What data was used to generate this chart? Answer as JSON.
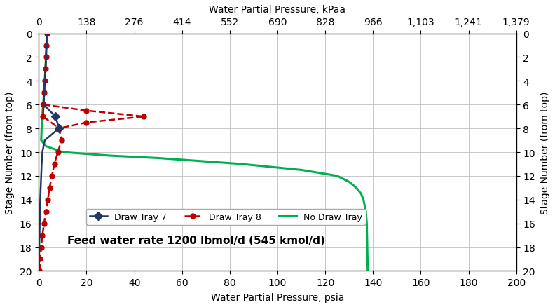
{
  "title_annotation": "Feed water rate 1200 lbmol/d (545 kmol/d)",
  "xlabel_bottom": "Water Partial Pressure, psia",
  "xlabel_top": "Water Partial Pressure, kPaa",
  "ylabel_left": "Stage Number (from top)",
  "ylabel_right": "Stage Number (from top)",
  "xlim_psia": [
    0,
    200
  ],
  "ylim": [
    0,
    20
  ],
  "xticks_bottom": [
    0,
    20,
    40,
    60,
    80,
    100,
    120,
    140,
    160,
    180,
    200
  ],
  "xticks_top_labels": [
    "0",
    "138",
    "276",
    "414",
    "552",
    "690",
    "828",
    "966",
    "1,103",
    "1,241",
    "1,379"
  ],
  "xticks_top_values": [
    0,
    20,
    40,
    60,
    80,
    100,
    120,
    140,
    160,
    180,
    200
  ],
  "yticks": [
    0,
    2,
    4,
    6,
    8,
    10,
    12,
    14,
    16,
    18,
    20
  ],
  "draw_tray7": {
    "stages": [
      0,
      1,
      2,
      3,
      4,
      5,
      6,
      7,
      8,
      9,
      10,
      11,
      12,
      13,
      14,
      15,
      16,
      17,
      18,
      19,
      20
    ],
    "pressure": [
      3.5,
      3.2,
      3.0,
      2.8,
      2.5,
      2.3,
      2.0,
      7.0,
      8.5,
      2.5,
      1.5,
      1.2,
      1.0,
      0.8,
      0.6,
      0.5,
      0.4,
      0.3,
      0.2,
      0.15,
      0.1
    ],
    "marker_stages": [
      7,
      8
    ],
    "marker_pressures": [
      7.0,
      8.5
    ],
    "color": "#1F3864",
    "linewidth": 1.8,
    "marker": "D",
    "markersize": 6,
    "label": "Draw Tray 7"
  },
  "draw_tray8": {
    "stages": [
      0,
      1,
      2,
      3,
      4,
      5,
      6,
      7,
      8,
      9,
      10,
      11,
      12,
      13,
      14,
      15,
      16,
      17,
      18,
      19,
      20
    ],
    "pressure": [
      3.5,
      3.2,
      3.0,
      2.8,
      2.5,
      2.3,
      2.0,
      1.8,
      8.5,
      9.5,
      8.0,
      6.5,
      5.5,
      4.5,
      3.8,
      3.0,
      2.2,
      1.5,
      1.0,
      0.6,
      0.3
    ],
    "peak_stage": 7,
    "peak_pressure": 44.0,
    "loop_stages": [
      6,
      7,
      7,
      8
    ],
    "loop_pressure": [
      2.0,
      44.0,
      44.0,
      8.5
    ],
    "color": "#C00000",
    "linewidth": 1.8,
    "linestyle": "--",
    "marker": "o",
    "markersize": 5,
    "label": "Draw Tray 8"
  },
  "no_draw": {
    "stages": [
      0,
      1,
      2,
      3,
      4,
      5,
      6,
      7,
      8,
      9,
      9.5,
      10,
      10.3,
      10.5,
      11,
      11.5,
      12,
      12.5,
      13,
      13.5,
      14,
      14.5,
      15,
      15.5,
      16,
      17,
      18,
      19,
      20
    ],
    "pressure": [
      3.5,
      3.2,
      3.0,
      2.8,
      2.5,
      2.2,
      1.8,
      1.5,
      1.2,
      1.0,
      3.0,
      10.0,
      30.0,
      50.0,
      85.0,
      110.0,
      125.0,
      130.0,
      133.0,
      135.0,
      136.0,
      136.5,
      137.0,
      137.2,
      137.4,
      137.5,
      137.6,
      137.7,
      137.8
    ],
    "color": "#00B050",
    "linewidth": 2.2,
    "label": "No Draw Tray"
  },
  "background_color": "#FFFFFF",
  "grid_color": "#BFBFBF",
  "annotation_fontsize": 11,
  "legend_fontsize": 9,
  "axis_fontsize": 10
}
